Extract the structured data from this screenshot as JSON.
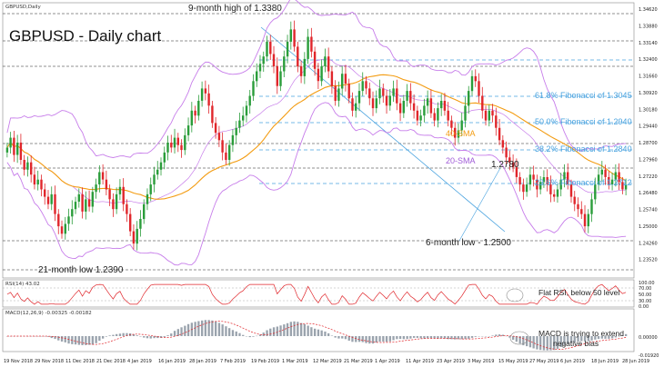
{
  "chart_data": {
    "type": "candlestick",
    "title": "GBPUSD - Daily chart",
    "symbol_label": "GBPUSD,Daily",
    "price_axis": {
      "ylim": [
        1.2335,
        1.342
      ],
      "ticks": [
        "1.34620",
        "1.33880",
        "1.33140",
        "1.32400",
        "1.31660",
        "1.30920",
        "1.30180",
        "1.29440",
        "1.28700",
        "1.27960",
        "1.27220",
        "1.26480",
        "1.25740",
        "1.25000",
        "1.24260",
        "1.23520"
      ]
    },
    "x_labels": [
      "19 Nov 2018",
      "29 Nov 2018",
      "11 Dec 2018",
      "21 Dec 2018",
      "4 Jan 2019",
      "16 Jan 2019",
      "28 Jan 2019",
      "7 Feb 2019",
      "19 Feb 2019",
      "1 Mar 2019",
      "12 Mar 2019",
      "21 Mar 2019",
      "1 Apr 2019",
      "11 Apr 2019",
      "23 Apr 2019",
      "3 May 2019",
      "15 May 2019",
      "27 May 2019",
      "6 Jun 2019",
      "18 Jun 2019",
      "28 Jun 2019"
    ],
    "close": [
      1.285,
      1.289,
      1.282,
      1.287,
      1.28,
      1.276,
      1.279,
      1.274,
      1.27,
      1.272,
      1.268,
      1.265,
      1.262,
      1.266,
      1.258,
      1.253,
      1.25,
      1.254,
      1.257,
      1.26,
      1.263,
      1.266,
      1.259,
      1.264,
      1.261,
      1.267,
      1.27,
      1.275,
      1.272,
      1.268,
      1.264,
      1.26,
      1.266,
      1.269,
      1.262,
      1.258,
      1.251,
      1.246,
      1.252,
      1.256,
      1.262,
      1.266,
      1.27,
      1.274,
      1.276,
      1.279,
      1.283,
      1.287,
      1.285,
      1.289,
      1.286,
      1.284,
      1.29,
      1.294,
      1.3,
      1.298,
      1.304,
      1.309,
      1.307,
      1.302,
      1.295,
      1.291,
      1.288,
      1.283,
      1.28,
      1.286,
      1.29,
      1.293,
      1.296,
      1.298,
      1.302,
      1.306,
      1.312,
      1.316,
      1.319,
      1.322,
      1.328,
      1.323,
      1.318,
      1.31,
      1.316,
      1.322,
      1.328,
      1.333,
      1.326,
      1.318,
      1.314,
      1.321,
      1.33,
      1.324,
      1.317,
      1.312,
      1.318,
      1.322,
      1.316,
      1.31,
      1.304,
      1.309,
      1.315,
      1.311,
      1.305,
      1.3,
      1.303,
      1.308,
      1.312,
      1.309,
      1.305,
      1.301,
      1.305,
      1.309,
      1.306,
      1.302,
      1.306,
      1.309,
      1.303,
      1.299,
      1.304,
      1.308,
      1.303,
      1.3,
      1.296,
      1.298,
      1.302,
      1.305,
      1.299,
      1.296,
      1.301,
      1.304,
      1.3,
      1.296,
      1.293,
      1.289,
      1.292,
      1.296,
      1.302,
      1.308,
      1.314,
      1.312,
      1.306,
      1.3,
      1.296,
      1.3,
      1.298,
      1.293,
      1.288,
      1.285,
      1.281,
      1.279,
      1.277,
      1.273,
      1.27,
      1.267,
      1.27,
      1.274,
      1.272,
      1.268,
      1.271,
      1.273,
      1.27,
      1.266,
      1.265,
      1.268,
      1.272,
      1.275,
      1.27,
      1.265,
      1.262,
      1.26,
      1.258,
      1.253,
      1.258,
      1.264,
      1.27,
      1.274,
      1.276,
      1.273,
      1.27,
      1.272,
      1.275,
      1.271,
      1.268,
      1.27
    ]
  },
  "annotations": {
    "high": "9-month high of 1.3380",
    "low21": "21-month low 1.2390",
    "low6": "6-month low - 1.2500",
    "peak": "1.2780",
    "sma40": "40-SMA",
    "sma20": "20-SMA",
    "fib_618": "61.8% Fibonacci of 1.3045",
    "fib_500": "50.0% Fibonacci of 1.2940",
    "fib_382": "38.2% Fibonacci of 1.2840",
    "fib_236": "23.6% Fibonacci of 1.2712"
  },
  "rsi": {
    "label": "RSI(14) 43.02",
    "note": "Flat RSI, below 50 level",
    "ticks": [
      "100.00",
      "70.00",
      "50.00",
      "30.00",
      "0.00"
    ]
  },
  "macd": {
    "label": "MACD(12,26,9) -0.00325 -0.00182",
    "note_line1": "MACD is trying to extend",
    "note_line2": "negative bias",
    "ticks": [
      "0.00000",
      "-0.01920"
    ]
  },
  "colors": {
    "bull": "#2a9d3a",
    "bear": "#e0262b",
    "bollinger": "#c77dea",
    "sma40": "#f39c12",
    "fib": "#4aa3df"
  }
}
